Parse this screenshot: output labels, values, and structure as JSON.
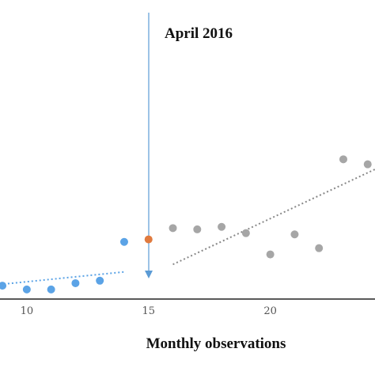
{
  "chart_data": {
    "type": "scatter",
    "xlabel": "Monthly observations",
    "ylabel": "",
    "x_ticks": [
      10,
      15,
      20
    ],
    "xlim": [
      8.9,
      24.3
    ],
    "ylim": [
      0,
      11
    ],
    "grid": false,
    "legend": "none",
    "intervention": {
      "x": 15,
      "label": "April 2016",
      "color": "#5b9bd5"
    },
    "series": [
      {
        "color": "#5ba3e6",
        "x": [
          9,
          10,
          11,
          12,
          13,
          14
        ],
        "y": [
          0.85,
          0.7,
          0.7,
          0.95,
          1.05,
          2.6
        ]
      },
      {
        "color": "#e07a3e",
        "x": [
          15
        ],
        "y": [
          2.7
        ]
      },
      {
        "color": "#a6a6a6",
        "x": [
          16,
          17,
          18,
          19,
          20,
          21,
          22,
          23,
          24
        ],
        "y": [
          3.15,
          3.1,
          3.2,
          2.95,
          2.1,
          2.9,
          2.35,
          5.9,
          5.7
        ]
      }
    ],
    "trendlines": [
      {
        "color": "#5ba3e6",
        "x": [
          8.9,
          14
        ],
        "y": [
          0.9,
          1.4
        ]
      },
      {
        "color": "#888888",
        "x": [
          16,
          24.3
        ],
        "y": [
          1.7,
          5.5
        ]
      }
    ]
  }
}
